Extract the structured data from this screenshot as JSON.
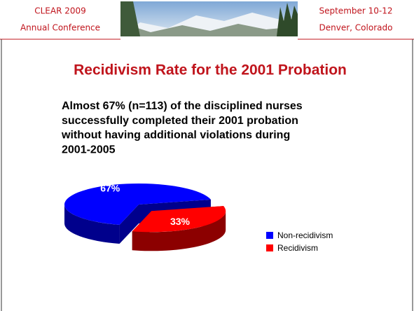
{
  "header": {
    "left": [
      "CLEAR 2009",
      "Annual Conference"
    ],
    "right": [
      "September 10-12",
      "Denver, Colorado"
    ]
  },
  "chart_data": {
    "type": "pie",
    "title": "Recidivism Rate for the 2001 Probation",
    "text": [
      "Almost 67% (n=113) of the disciplined nurses",
      "successfully completed their 2001 probation",
      "without having additional violations during",
      "2001-2005"
    ],
    "categories": [
      "Non-recidivism",
      "Recidivism"
    ],
    "values": [
      67,
      33
    ],
    "value_labels": [
      "67%",
      "33%"
    ],
    "colors": [
      "#0000ff",
      "#ff0000"
    ],
    "legend": "right"
  }
}
